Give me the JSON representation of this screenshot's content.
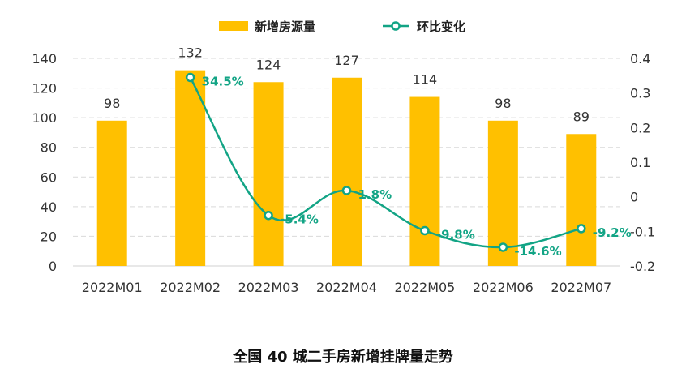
{
  "chart_data": {
    "type": "bar",
    "categories": [
      "2022M01",
      "2022M02",
      "2022M03",
      "2022M04",
      "2022M05",
      "2022M06",
      "2022M07"
    ],
    "series": [
      {
        "name": "新增房源量",
        "type": "bar",
        "axis": "left",
        "color": "#FFC000",
        "values": [
          98,
          132,
          124,
          127,
          114,
          98,
          89
        ]
      },
      {
        "name": "环比变化",
        "type": "line",
        "axis": "right",
        "color": "#12A485",
        "values": [
          null,
          0.345,
          -0.054,
          0.018,
          -0.098,
          -0.146,
          -0.092
        ],
        "labels": [
          "",
          "34.5%",
          "-5.4%",
          "1.8%",
          "-9.8%",
          "-14.6%",
          "-9.2%"
        ]
      }
    ],
    "ylim_left": [
      0,
      140
    ],
    "yticks_left": [
      0,
      20,
      40,
      60,
      80,
      100,
      120,
      140
    ],
    "ylim_right": [
      -0.2,
      0.4
    ],
    "yticks_right": [
      "-0.2",
      "-0.1",
      "0",
      "0.1",
      "0.2",
      "0.3",
      "0.4"
    ],
    "grid": true,
    "legend_position": "top-center",
    "caption": "全国 40 城二手房新增挂牌量走势"
  }
}
